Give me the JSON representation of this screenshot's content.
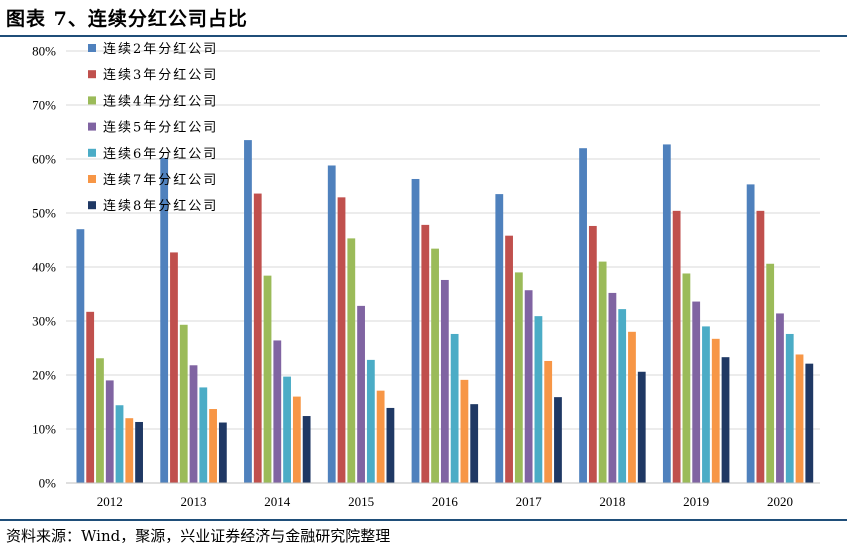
{
  "header": {
    "title": "图表 7、连续分红公司占比"
  },
  "footer": {
    "source": "资料来源：Wind，聚源，兴业证券经济与金融研究院整理"
  },
  "chart_data": {
    "type": "bar",
    "title": "",
    "xlabel": "",
    "ylabel": "",
    "ylim": [
      0,
      80
    ],
    "yticks": [
      "0%",
      "10%",
      "20%",
      "30%",
      "40%",
      "50%",
      "60%",
      "70%",
      "80%"
    ],
    "grid": true,
    "legend_position": "top-left",
    "categories": [
      "2012",
      "2013",
      "2014",
      "2015",
      "2016",
      "2017",
      "2018",
      "2019",
      "2020"
    ],
    "series": [
      {
        "name": "连续2年分红公司",
        "color": "#4f81bd",
        "values": [
          47.0,
          60.2,
          63.5,
          58.8,
          56.3,
          53.5,
          62.0,
          62.7,
          55.3
        ]
      },
      {
        "name": "连续3年分红公司",
        "color": "#c0504d",
        "values": [
          31.7,
          42.7,
          53.6,
          52.9,
          47.8,
          45.8,
          47.6,
          50.4,
          50.4
        ]
      },
      {
        "name": "连续4年分红公司",
        "color": "#9bbb59",
        "values": [
          23.1,
          29.3,
          38.4,
          45.3,
          43.4,
          39.0,
          41.0,
          38.8,
          40.6
        ]
      },
      {
        "name": "连续5年分红公司",
        "color": "#8064a2",
        "values": [
          19.0,
          21.8,
          26.4,
          32.8,
          37.6,
          35.7,
          35.2,
          33.6,
          31.4
        ]
      },
      {
        "name": "连续6年分红公司",
        "color": "#4bacc6",
        "values": [
          14.4,
          17.7,
          19.7,
          22.8,
          27.6,
          30.9,
          32.2,
          29.0,
          27.6
        ]
      },
      {
        "name": "连续7年分红公司",
        "color": "#f79646",
        "values": [
          12.0,
          13.7,
          16.0,
          17.1,
          19.1,
          22.6,
          28.0,
          26.7,
          23.8
        ]
      },
      {
        "name": "连续8年分红公司",
        "color": "#1f3864",
        "values": [
          11.3,
          11.2,
          12.4,
          13.9,
          14.6,
          15.9,
          20.6,
          23.3,
          22.1
        ]
      }
    ]
  }
}
